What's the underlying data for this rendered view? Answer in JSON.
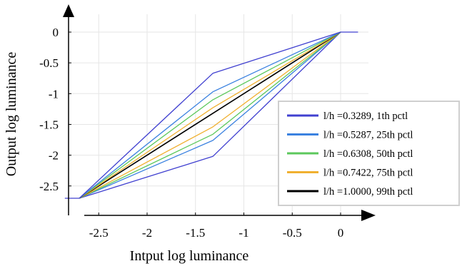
{
  "chart_data": {
    "type": "line",
    "title": "",
    "xlabel": "Intput log luminance",
    "ylabel": "Output log luminance",
    "xlim": [
      -2.85,
      0.22
    ],
    "ylim": [
      -2.85,
      0.08
    ],
    "xticks": [
      -2.5,
      -2,
      -1.5,
      -1,
      -0.5,
      0
    ],
    "xtick_labels": [
      "-2.5",
      "-2",
      "-1.5",
      "-1",
      "-0.5",
      "0"
    ],
    "yticks": [
      0,
      -0.5,
      -1,
      -1.5,
      -2,
      -2.5
    ],
    "ytick_labels": [
      "0",
      "-0.5",
      "-1",
      "-1.5",
      "-2",
      "-2.5"
    ],
    "grid": true,
    "legend_position": "right",
    "series": [
      {
        "name": "l/h =0.3289, 1th pctl",
        "color": "#4040d0",
        "x": [
          -2.85,
          -2.7,
          -1.32,
          0,
          0.18
        ],
        "y": [
          -2.7,
          -2.7,
          -2.02,
          0,
          0
        ]
      },
      {
        "name": "l/h =0.5287, 25th pctl",
        "color": "#3b82e0",
        "x": [
          -2.7,
          -1.32,
          0
        ],
        "y": [
          -2.7,
          -1.76,
          0
        ]
      },
      {
        "name": "l/h =0.6308, 50th pctl",
        "color": "#5cc85c",
        "x": [
          -2.7,
          -1.32,
          0
        ],
        "y": [
          -2.7,
          -1.66,
          0
        ]
      },
      {
        "name": "l/h =0.7422, 75th pctl",
        "color": "#f0b030",
        "x": [
          -2.7,
          -1.32,
          0
        ],
        "y": [
          -2.7,
          -1.54,
          0
        ]
      },
      {
        "name": "l/h =1.0000, 99th pctl",
        "color": "#000000",
        "x": [
          -2.7,
          0
        ],
        "y": [
          -2.7,
          0
        ]
      },
      {
        "name": "",
        "color": "#f0b030",
        "x": [
          -2.7,
          -1.32,
          0
        ],
        "y": [
          -2.7,
          -1.23,
          0
        ]
      },
      {
        "name": "",
        "color": "#5cc85c",
        "x": [
          -2.7,
          -1.32,
          0
        ],
        "y": [
          -2.7,
          -1.1,
          0
        ]
      },
      {
        "name": "",
        "color": "#3b82e0",
        "x": [
          -2.7,
          -1.32,
          0
        ],
        "y": [
          -2.7,
          -0.97,
          0
        ]
      },
      {
        "name": "",
        "color": "#4040d0",
        "x": [
          -2.7,
          -1.32,
          0
        ],
        "y": [
          -2.7,
          -0.67,
          0
        ]
      }
    ]
  }
}
